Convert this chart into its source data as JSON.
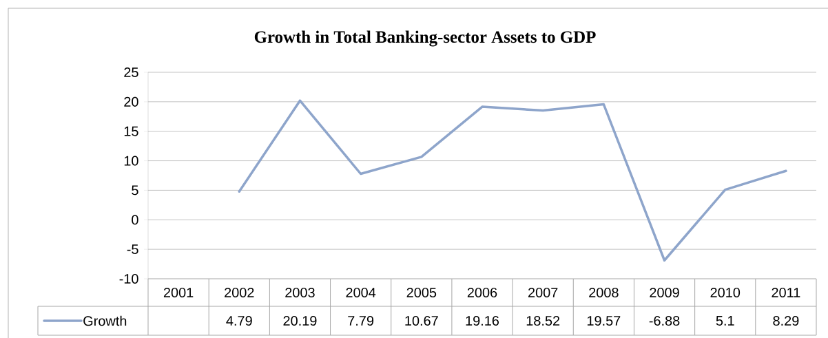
{
  "chart_data": {
    "type": "line",
    "title": "Growth in Total Banking-sector Assets to GDP",
    "categories": [
      "2001",
      "2002",
      "2003",
      "2004",
      "2005",
      "2006",
      "2007",
      "2008",
      "2009",
      "2010",
      "2011"
    ],
    "series": [
      {
        "name": "Growth",
        "color": "#8ea5cb",
        "values": [
          null,
          4.79,
          20.19,
          7.79,
          10.67,
          19.16,
          18.52,
          19.57,
          -6.88,
          5.1,
          8.29
        ]
      }
    ],
    "ylim": [
      -10,
      25
    ],
    "yticks": [
      -10,
      -5,
      0,
      5,
      10,
      15,
      20,
      25
    ],
    "grid": "y",
    "data_labels": true,
    "legend": "bottom",
    "marker": "none",
    "line_style": "solid"
  }
}
